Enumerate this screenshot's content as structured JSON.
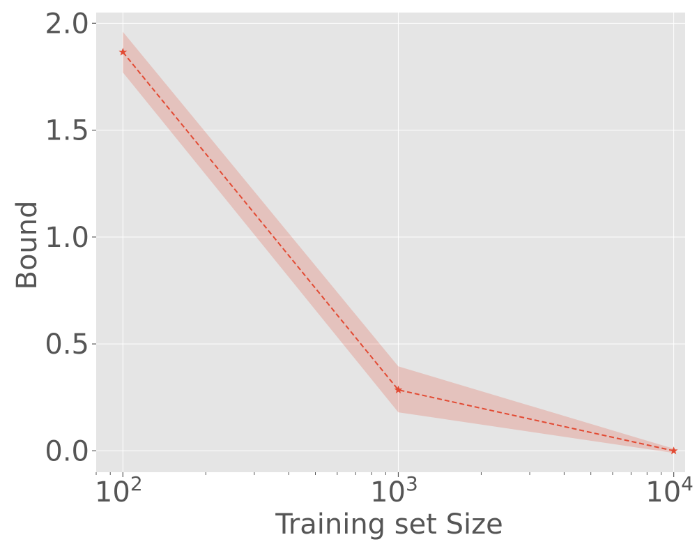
{
  "chart_data": {
    "type": "line",
    "xlabel": "Training set Size",
    "ylabel": "Bound",
    "x_scale": "log",
    "xlim": [
      80,
      11000
    ],
    "ylim": [
      -0.1,
      2.05
    ],
    "grid": true,
    "x_ticks": [
      {
        "value": 100,
        "base": "10",
        "exp": "2"
      },
      {
        "value": 1000,
        "base": "10",
        "exp": "3"
      },
      {
        "value": 10000,
        "base": "10",
        "exp": "4"
      }
    ],
    "y_ticks": [
      {
        "value": 0.0,
        "label": "0.0"
      },
      {
        "value": 0.5,
        "label": "0.5"
      },
      {
        "value": 1.0,
        "label": "1.0"
      },
      {
        "value": 1.5,
        "label": "1.5"
      },
      {
        "value": 2.0,
        "label": "2.0"
      }
    ],
    "series": [
      {
        "x": [
          100,
          1000,
          10000
        ],
        "values": [
          1.865,
          0.285,
          0.0
        ],
        "lower": [
          1.77,
          0.18,
          -0.01
        ],
        "upper": [
          1.96,
          0.395,
          0.01
        ],
        "color": "#E24A33",
        "band_color": "#E24A33",
        "line_style": "dashed",
        "marker": "star"
      }
    ],
    "colors": {
      "plot_background": "#E5E5E5",
      "grid": "#FFFFFF",
      "text": "#555555"
    }
  }
}
